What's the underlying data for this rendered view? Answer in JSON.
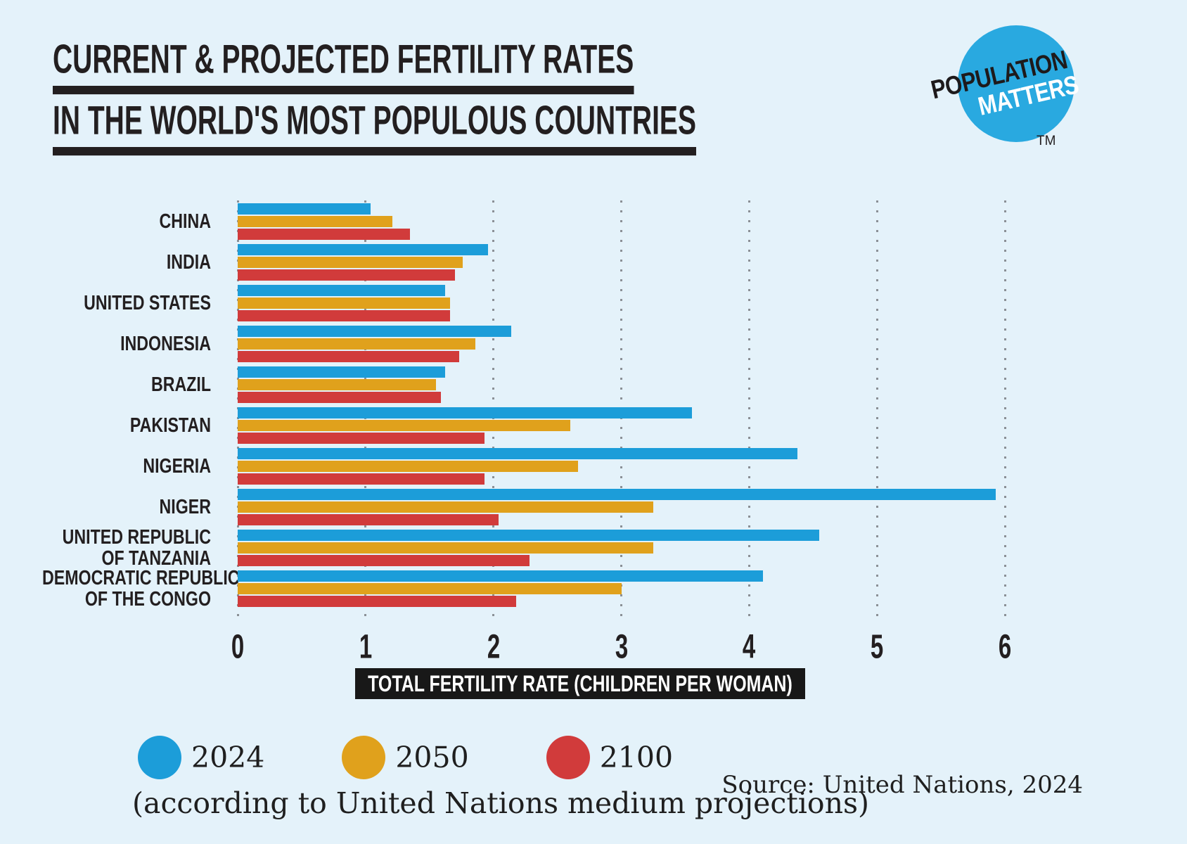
{
  "title": {
    "line1": "CURRENT & PROJECTED FERTILITY RATES",
    "line2": "IN THE WORLD'S MOST POPULOUS COUNTRIES"
  },
  "logo": {
    "line1": "POPULATION",
    "line2": "MATTERS",
    "tm": "TM",
    "circle_color": "#29a9e0"
  },
  "chart_data": {
    "type": "bar",
    "orientation": "horizontal",
    "categories": [
      [
        "CHINA"
      ],
      [
        "INDIA"
      ],
      [
        "UNITED STATES"
      ],
      [
        "INDONESIA"
      ],
      [
        "BRAZIL"
      ],
      [
        "PAKISTAN"
      ],
      [
        "NIGERIA"
      ],
      [
        "NIGER"
      ],
      [
        "UNITED REPUBLIC",
        "OF TANZANIA"
      ],
      [
        "DEMOCRATIC REPUBLIC",
        "OF THE CONGO"
      ]
    ],
    "series": [
      {
        "name": "2024",
        "color": "#1c9dd9",
        "values": [
          1.04,
          1.96,
          1.62,
          2.14,
          1.62,
          3.55,
          4.38,
          5.93,
          4.55,
          4.11
        ]
      },
      {
        "name": "2050",
        "color": "#e0a11c",
        "values": [
          1.21,
          1.76,
          1.66,
          1.86,
          1.55,
          2.6,
          2.66,
          3.25,
          3.25,
          3.0
        ]
      },
      {
        "name": "2100",
        "color": "#d13b3b",
        "values": [
          1.35,
          1.7,
          1.66,
          1.73,
          1.59,
          1.93,
          1.93,
          2.04,
          2.28,
          2.18
        ]
      }
    ],
    "xlabel": "TOTAL FERTILITY RATE (CHILDREN PER WOMAN)",
    "xlim": [
      0,
      6
    ],
    "xticks": [
      0,
      1,
      2,
      3,
      4,
      5,
      6
    ],
    "grid": "dotted-vertical",
    "legend_position": "bottom"
  },
  "legend_note": "(according to United Nations medium projections)",
  "source": "Source: United Nations, 2024",
  "colors": {
    "background": "#e4f2fa",
    "text": "#231f20",
    "grid_dots": "#8b9096",
    "xlabel_box": "#181818"
  }
}
